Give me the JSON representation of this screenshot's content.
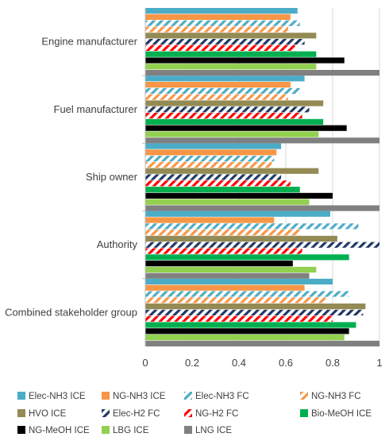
{
  "chart_data": {
    "type": "bar",
    "orientation": "horizontal",
    "title": "",
    "xlabel": "",
    "ylabel": "",
    "xlim": [
      0,
      1
    ],
    "x_ticks": [
      "0",
      "0.2",
      "0.4",
      "0.6",
      "0.8",
      "1"
    ],
    "x_tick_values": [
      0,
      0.2,
      0.4,
      0.6,
      0.8,
      1
    ],
    "categories": [
      "Engine manufacturer",
      "Fuel manufacturer",
      "Ship owner",
      "Authority",
      "Combined stakeholder group"
    ],
    "grid": "vertical",
    "legend_position": "bottom",
    "series": [
      {
        "name": "Elec-NH3 ICE",
        "color": "#4bacc6",
        "pattern": "solid",
        "values": [
          0.65,
          0.68,
          0.58,
          0.79,
          0.8
        ]
      },
      {
        "name": "NG-NH3 ICE",
        "color": "#f79646",
        "pattern": "solid",
        "values": [
          0.62,
          0.62,
          0.56,
          0.55,
          0.68
        ]
      },
      {
        "name": "Elec-NH3 FC",
        "color": "#4bacc6",
        "pattern": "hatch",
        "values": [
          0.66,
          0.66,
          0.55,
          0.91,
          0.87
        ]
      },
      {
        "name": "NG-NH3 FC",
        "color": "#f79646",
        "pattern": "hatch",
        "values": [
          0.61,
          0.61,
          0.54,
          0.66,
          0.77
        ]
      },
      {
        "name": "HVO ICE",
        "color": "#948a54",
        "pattern": "solid",
        "values": [
          0.73,
          0.76,
          0.74,
          0.82,
          0.94
        ]
      },
      {
        "name": "Elec-H2 FC",
        "color": "#1f3864",
        "pattern": "hatch",
        "values": [
          0.68,
          0.7,
          0.58,
          1.0,
          0.93
        ]
      },
      {
        "name": "NG-H2 FC",
        "color": "#ff0000",
        "pattern": "hatch",
        "values": [
          0.64,
          0.67,
          0.62,
          0.67,
          0.8
        ]
      },
      {
        "name": "Bio-MeOH ICE",
        "color": "#00b050",
        "pattern": "solid",
        "values": [
          0.73,
          0.76,
          0.66,
          0.87,
          0.9
        ]
      },
      {
        "name": "NG-MeOH ICE",
        "color": "#000000",
        "pattern": "solid",
        "values": [
          0.85,
          0.86,
          0.8,
          0.63,
          0.87
        ]
      },
      {
        "name": "LBG ICE",
        "color": "#92d050",
        "pattern": "solid",
        "values": [
          0.73,
          0.74,
          0.7,
          0.73,
          0.85
        ]
      },
      {
        "name": "LNG ICE",
        "color": "#808080",
        "pattern": "solid",
        "values": [
          1.0,
          1.0,
          1.0,
          0.7,
          1.0
        ]
      }
    ]
  }
}
